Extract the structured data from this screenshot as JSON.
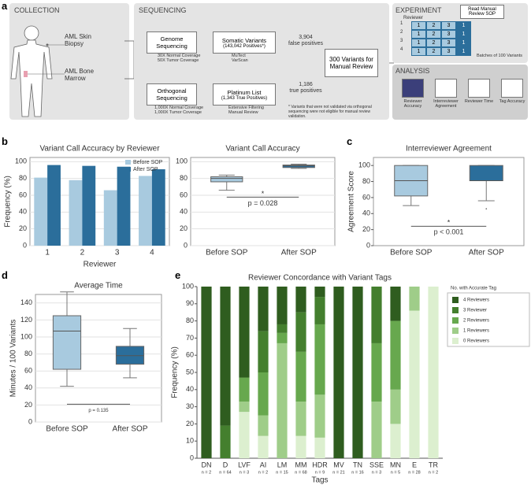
{
  "panel_labels": [
    "a",
    "b",
    "c",
    "d",
    "e"
  ],
  "panel_a": {
    "collection": {
      "title": "COLLECTION",
      "skin": "AML Skin Biopsy",
      "marrow": "AML Bone Marrow"
    },
    "sequencing": {
      "title": "SEQUENCING",
      "genome": "Genome Sequencing",
      "genome_notes": [
        "30X Normal Coverage",
        "50X Tumor Coverage"
      ],
      "somatic": "Somatic Variants",
      "somatic_sub": "(143,042 Positives*)",
      "callers": [
        "MuTect",
        "VarScan"
      ],
      "orthogonal": "Orthogonal Sequencing",
      "orthogonal_notes": [
        "1,000X Normal Coverage",
        "1,000X Tumor Coverage"
      ],
      "platinum": "Platinum List",
      "platinum_sub": "(1,343 True Positives)",
      "platinum_notes": [
        "Extensive Filtering",
        "Manual Review"
      ],
      "false_pos": [
        "3,904",
        "false positives"
      ],
      "true_pos": [
        "1,186",
        "true positives"
      ],
      "manual": "300 Variants for Manual Review",
      "footnote": "* Variants that were not validated via orthogonal sequencing were not eligible for manual review validation."
    },
    "experiment": {
      "title": "EXPERIMENT",
      "sop": "Read Manual Review SOP",
      "reviewer": "Reviewer",
      "reviewers": [
        "1",
        "2",
        "3",
        "4"
      ],
      "batches": [
        "1",
        "2",
        "3",
        "1"
      ],
      "batch_note": "Batches of 100 Variants"
    },
    "analysis": {
      "title": "ANALYSIS",
      "items": [
        "Reviewer Accuracy",
        "Interreviewer Agreement",
        "Reviewer Time",
        "Tag Accuracy"
      ]
    }
  },
  "chart_data": [
    {
      "type": "bar",
      "title": "Variant Call Accuracy by Reviewer",
      "xlabel": "Reviewer",
      "ylabel": "Frequency (%)",
      "categories": [
        "1",
        "2",
        "3",
        "4"
      ],
      "ylim": [
        0,
        105
      ],
      "yticks": [
        0,
        20,
        40,
        60,
        80,
        100
      ],
      "grid": true,
      "legend": "upper right",
      "series": [
        {
          "name": "Before SOP",
          "color": "#a8cadf",
          "values": [
            81,
            78,
            66,
            83
          ]
        },
        {
          "name": "After SOP",
          "color": "#2b6e9b",
          "values": [
            96,
            95,
            94,
            91
          ]
        }
      ]
    },
    {
      "type": "box",
      "title": "Variant Call Accuracy",
      "categories": [
        "Before SOP",
        "After SOP"
      ],
      "ylim": [
        0,
        105
      ],
      "yticks": [
        0,
        20,
        40,
        60,
        80,
        100
      ],
      "grid": true,
      "colors": [
        "#a8cadf",
        "#2b6e9b"
      ],
      "boxes": [
        {
          "low": 66,
          "q1": 76,
          "median": 80,
          "q3": 82,
          "high": 84
        },
        {
          "low": 92,
          "q1": 93,
          "median": 95,
          "q3": 96,
          "high": 97
        }
      ],
      "star": "*",
      "p_label": "p = 0.028"
    },
    {
      "type": "box",
      "title": "Interreviewer Agreement",
      "ylabel": "Agreement Score",
      "categories": [
        "Before SOP",
        "After SOP"
      ],
      "ylim": [
        0,
        110
      ],
      "yticks": [
        0,
        20,
        40,
        60,
        80,
        100
      ],
      "grid": false,
      "colors": [
        "#a8cadf",
        "#2b6e9b"
      ],
      "boxes": [
        {
          "low": 50,
          "q1": 62,
          "median": 81,
          "q3": 100,
          "high": 100
        },
        {
          "low": 56,
          "q1": 81,
          "median": 81,
          "q3": 100,
          "high": 100,
          "outliers": [
            46
          ]
        }
      ],
      "star": "*",
      "p_label": "p < 0.001"
    },
    {
      "type": "box",
      "title": "Average Time",
      "ylabel": "Minutes / 100 Variants",
      "categories": [
        "Before SOP",
        "After SOP"
      ],
      "ylim": [
        0,
        150
      ],
      "yticks": [
        0,
        20,
        40,
        60,
        80,
        100,
        120,
        140
      ],
      "grid": true,
      "colors": [
        "#a8cadf",
        "#2b6e9b"
      ],
      "boxes": [
        {
          "low": 42,
          "q1": 62,
          "median": 107,
          "q3": 125,
          "high": 153
        },
        {
          "low": 52,
          "q1": 68,
          "median": 78,
          "q3": 89,
          "high": 110
        }
      ],
      "p_label": "p = 0.135"
    },
    {
      "type": "stacked_bar",
      "title": "Reviewer Concordance with Variant Tags",
      "xlabel": "Tags",
      "ylabel": "Frequency (%)",
      "legend_title": "No. with Accurate Tag",
      "categories": [
        "DN",
        "D",
        "LVF",
        "AI",
        "LM",
        "MM",
        "HDR",
        "MV",
        "TN",
        "SSE",
        "MN",
        "E",
        "TR"
      ],
      "sublabels": [
        "n = 2",
        "n = 64",
        "n = 3",
        "n = 2",
        "n = 15",
        "n = 68",
        "n = 9",
        "n = 21",
        "n = 16",
        "n = 3",
        "n = 5",
        "n = 28",
        "n = 2"
      ],
      "ylim": [
        0,
        100
      ],
      "yticks": [
        0,
        10,
        20,
        30,
        40,
        50,
        60,
        70,
        80,
        90,
        100
      ],
      "grid": false,
      "series": [
        {
          "name": "4 Reviewers",
          "color": "#2f5d1f",
          "values": [
            100,
            81,
            53,
            26,
            22,
            15,
            6,
            100,
            100,
            0,
            20,
            0,
            0
          ]
        },
        {
          "name": "3 Reviewer",
          "color": "#447f2e",
          "values": [
            0,
            19,
            0,
            24,
            5,
            23,
            16,
            0,
            0,
            33,
            0,
            0,
            0
          ]
        },
        {
          "name": "2 Reviewers",
          "color": "#67a84e",
          "values": [
            0,
            0,
            14,
            25,
            6,
            29,
            41,
            0,
            0,
            34,
            40,
            0,
            0
          ]
        },
        {
          "name": "1 Reviewers",
          "color": "#9fcd89",
          "values": [
            0,
            0,
            6,
            12,
            67,
            20,
            25,
            0,
            0,
            33,
            20,
            14,
            0
          ]
        },
        {
          "name": "0 Reviewers",
          "color": "#dcefcf",
          "values": [
            0,
            0,
            27,
            13,
            0,
            13,
            12,
            0,
            0,
            0,
            20,
            86,
            100
          ]
        }
      ]
    }
  ]
}
